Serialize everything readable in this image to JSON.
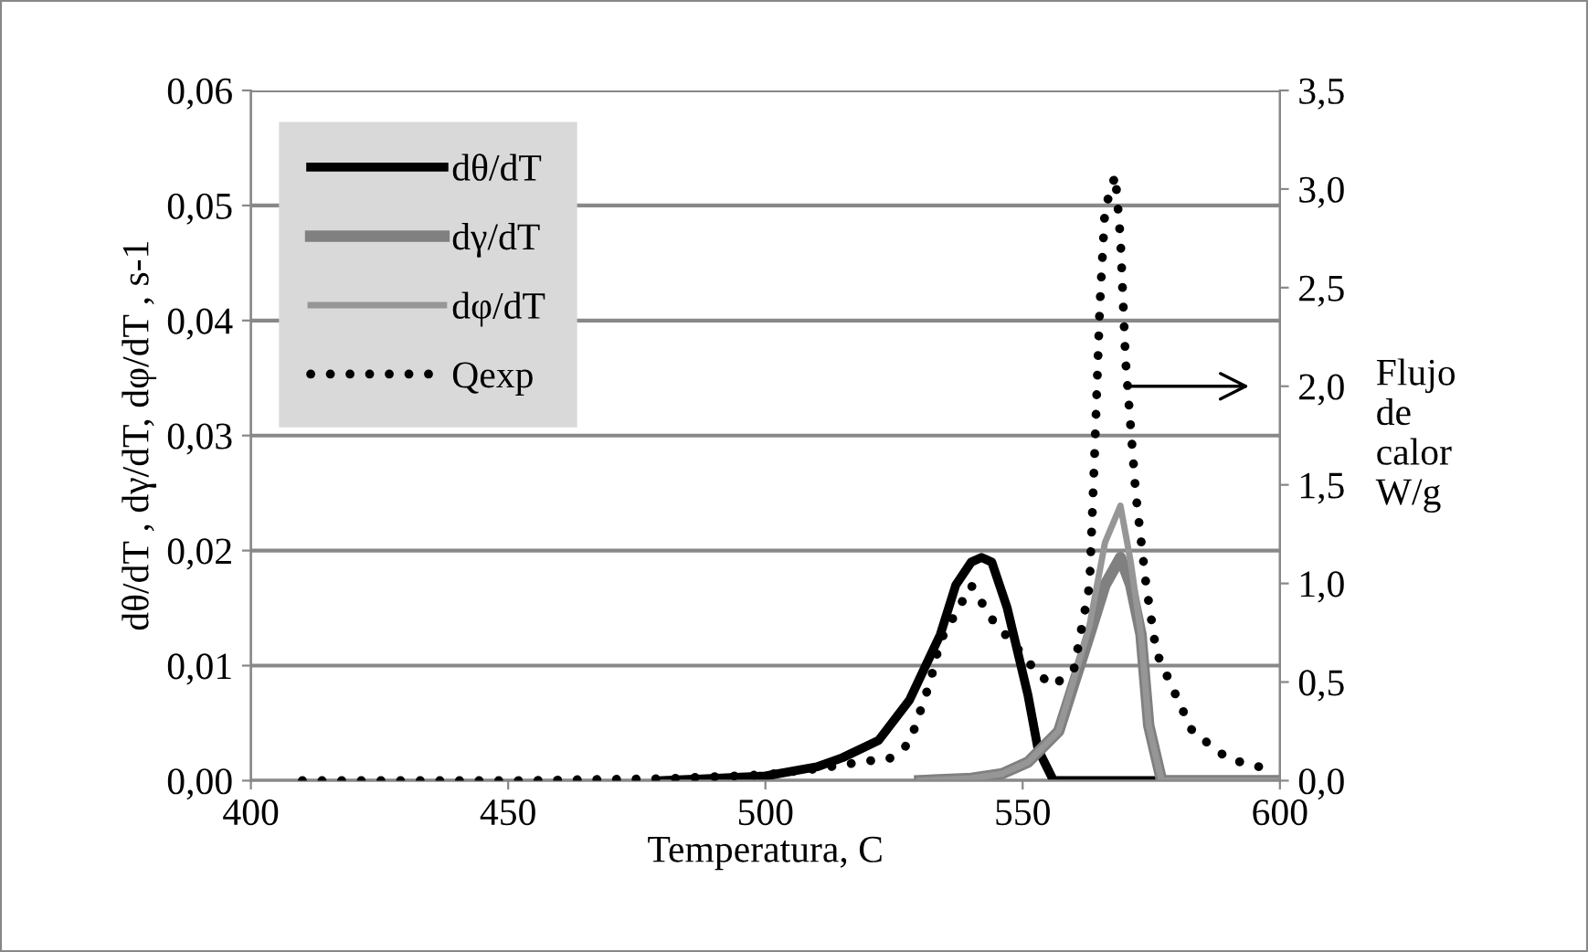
{
  "chart_data": {
    "type": "line",
    "xlabel": "Temperatura, C",
    "ylabel": "dθ/dT , dγ/dT, dφ/dT , s-1",
    "y2label": "Flujo\nde\ncalor\nW/g",
    "xlim": [
      400,
      600
    ],
    "xticks": [
      400,
      450,
      500,
      550,
      600
    ],
    "ylim": [
      0,
      0.06
    ],
    "yticks": [
      {
        "value": 0,
        "label": "0,00"
      },
      {
        "value": 0.01,
        "label": "0,01"
      },
      {
        "value": 0.02,
        "label": "0,02"
      },
      {
        "value": 0.03,
        "label": "0,03"
      },
      {
        "value": 0.04,
        "label": "0,04"
      },
      {
        "value": 0.05,
        "label": "0,05"
      },
      {
        "value": 0.06,
        "label": "0,06"
      }
    ],
    "y2lim": [
      0,
      3.5
    ],
    "y2ticks": [
      {
        "value": 0,
        "label": "0,0"
      },
      {
        "value": 0.5,
        "label": "0,5"
      },
      {
        "value": 1,
        "label": "1,0"
      },
      {
        "value": 1.5,
        "label": "1,5"
      },
      {
        "value": 2,
        "label": "2,0"
      },
      {
        "value": 2.5,
        "label": "2,5"
      },
      {
        "value": 3,
        "label": "3,0"
      },
      {
        "value": 3.5,
        "label": "3,5"
      }
    ],
    "grid": "y",
    "legend": "top left",
    "series": [
      {
        "name": "dθ/dT",
        "color": "#000000",
        "line_style": "solid",
        "x": [
          480,
          500,
          510,
          515,
          522,
          528,
          534,
          537,
          540,
          542,
          544,
          547,
          551,
          553,
          556,
          577
        ],
        "values": [
          0,
          0.0004,
          0.0012,
          0.002,
          0.0035,
          0.007,
          0.0127,
          0.017,
          0.019,
          0.0194,
          0.019,
          0.015,
          0.0075,
          0.0027,
          0,
          0
        ]
      },
      {
        "name": "dγ/dT",
        "color": "#808080",
        "line_style": "solid",
        "x": [
          530,
          540,
          546,
          551,
          557,
          563,
          566,
          569,
          571,
          573,
          574.5,
          577,
          600
        ],
        "values": [
          0,
          0.0002,
          0.0006,
          0.0016,
          0.0043,
          0.0127,
          0.017,
          0.0194,
          0.017,
          0.0127,
          0.0048,
          0,
          0
        ]
      },
      {
        "name": "dφ/dT",
        "color": "#969696",
        "line_style": "solid",
        "x": [
          530,
          540,
          546,
          551,
          557,
          563,
          566,
          569,
          571,
          573,
          574.5,
          577,
          600
        ],
        "values": [
          0,
          0.0002,
          0.0006,
          0.0016,
          0.0043,
          0.0135,
          0.0207,
          0.0239,
          0.019,
          0.0127,
          0.0048,
          0,
          0
        ]
      },
      {
        "name": "Qexp",
        "color": "#000000",
        "line_style": "dotted",
        "axis": "y2",
        "x": [
          410,
          450,
          480,
          500,
          510,
          520,
          524,
          528,
          532,
          534,
          540,
          544,
          550,
          553,
          556,
          560,
          563,
          564,
          565,
          566,
          568,
          569,
          570,
          572,
          574,
          576,
          580,
          583,
          590,
          599
        ],
        "values": [
          0,
          0,
          0.01,
          0.03,
          0.06,
          0.1,
          0.11,
          0.19,
          0.5,
          0.71,
          0.99,
          0.82,
          0.64,
          0.54,
          0.48,
          0.57,
          0.99,
          1.67,
          2.41,
          2.9,
          3.07,
          2.75,
          2.13,
          1.45,
          0.99,
          0.65,
          0.42,
          0.25,
          0.11,
          0.05
        ]
      }
    ]
  }
}
